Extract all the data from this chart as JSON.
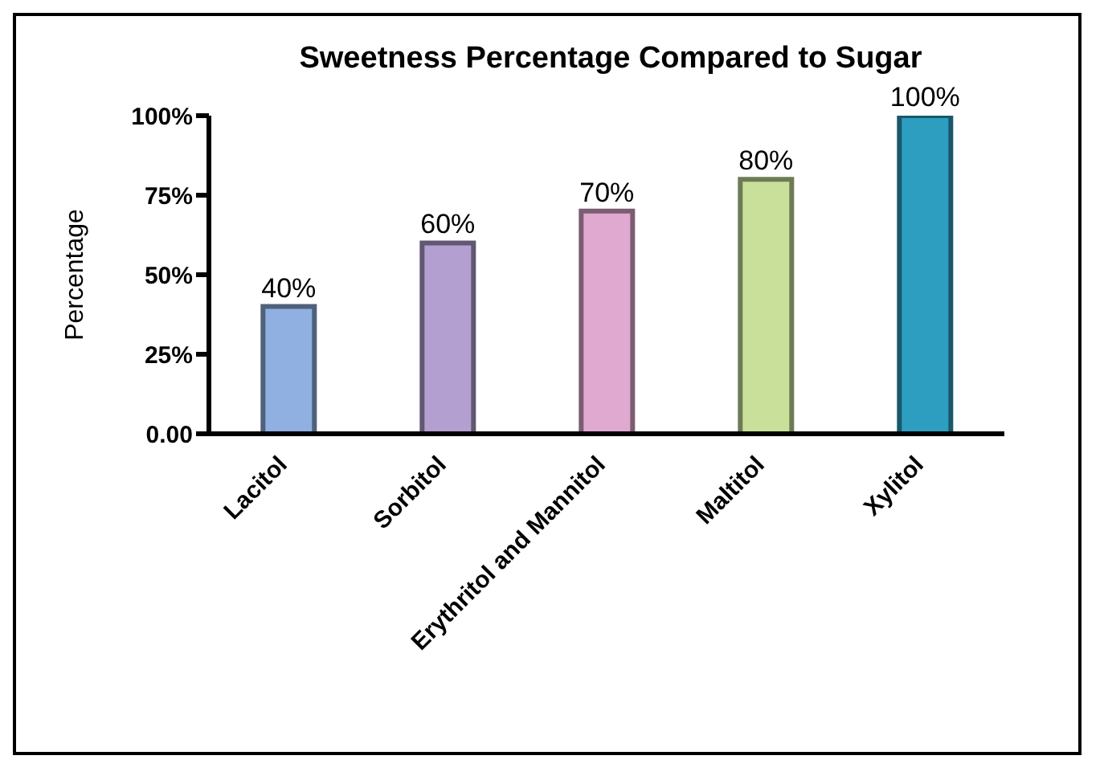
{
  "chart_data": {
    "type": "bar",
    "title": "Sweetness Percentage Compared to Sugar",
    "ylabel": "Percentage",
    "categories": [
      "Lacitol",
      "Sorbitol",
      "Erythritol and Mannitol",
      "Maltitol",
      "Xylitol"
    ],
    "values": [
      40,
      60,
      70,
      80,
      100
    ],
    "value_labels": [
      "40%",
      "60%",
      "70%",
      "80%",
      "100%"
    ],
    "colors": [
      "#8fb0e0",
      "#b39fd0",
      "#e0a9cf",
      "#c8e09a",
      "#2e9ec0"
    ],
    "ylim": [
      0,
      100
    ],
    "yticks": [
      {
        "value": 0,
        "label": "0.00"
      },
      {
        "value": 25,
        "label": "25%"
      },
      {
        "value": 50,
        "label": "50%"
      },
      {
        "value": 75,
        "label": "75%"
      },
      {
        "value": 100,
        "label": "100%"
      }
    ],
    "grid": false,
    "legend": false
  }
}
